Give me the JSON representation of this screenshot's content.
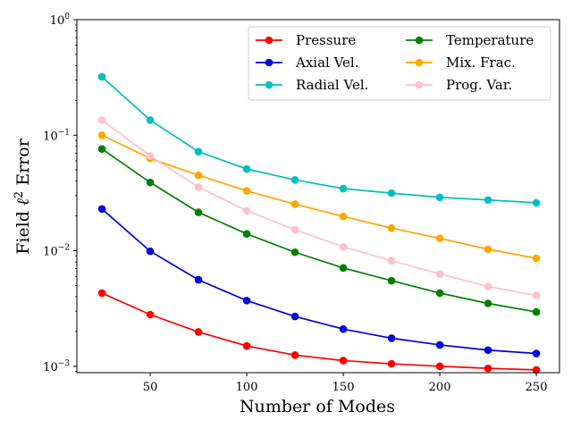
{
  "chart_data": {
    "type": "line",
    "title": "",
    "xlabel": "Number of Modes",
    "ylabel_prefix": "Field ",
    "ylabel_ell": "ℓ",
    "ylabel_sup": "2",
    "ylabel_suffix": " Error",
    "yscale": "log",
    "xlim": [
      12,
      262
    ],
    "ylim": [
      0.00088,
      1.0
    ],
    "x": [
      25,
      50,
      75,
      100,
      125,
      150,
      175,
      200,
      225,
      250
    ],
    "xticks": [
      50,
      100,
      150,
      200,
      250
    ],
    "xtick_labels": [
      "50",
      "100",
      "150",
      "200",
      "250"
    ],
    "yticks": [
      {
        "value": 0.001,
        "base": "10",
        "exp": "−3"
      },
      {
        "value": 0.01,
        "base": "10",
        "exp": "−2"
      },
      {
        "value": 0.1,
        "base": "10",
        "exp": "−1"
      },
      {
        "value": 1.0,
        "base": "10",
        "exp": "0"
      }
    ],
    "grid": false,
    "legend": "top-right",
    "series": [
      {
        "name": "Pressure",
        "color": "#ff0000",
        "values": [
          0.0043,
          0.0028,
          0.00198,
          0.0015,
          0.00125,
          0.00112,
          0.00105,
          0.001,
          0.00096,
          0.00093
        ]
      },
      {
        "name": "Axial Vel.",
        "color": "#0000dd",
        "values": [
          0.023,
          0.0099,
          0.0056,
          0.0037,
          0.0027,
          0.0021,
          0.00175,
          0.00153,
          0.00138,
          0.00129
        ]
      },
      {
        "name": "Radial Vel.",
        "color": "#00bfbf",
        "values": [
          0.32,
          0.135,
          0.072,
          0.051,
          0.041,
          0.0345,
          0.0315,
          0.029,
          0.0275,
          0.026
        ]
      },
      {
        "name": "Temperature",
        "color": "#008000",
        "values": [
          0.076,
          0.039,
          0.0215,
          0.014,
          0.0097,
          0.0071,
          0.0055,
          0.0043,
          0.0035,
          0.00295
        ]
      },
      {
        "name": "Mix. Frac.",
        "color": "#ffa500",
        "values": [
          0.1,
          0.063,
          0.045,
          0.033,
          0.0253,
          0.0198,
          0.0157,
          0.0128,
          0.0103,
          0.0086
        ]
      },
      {
        "name": "Prog. Var.",
        "color": "#ffc0cb",
        "values": [
          0.135,
          0.066,
          0.0355,
          0.0222,
          0.0152,
          0.0108,
          0.0082,
          0.0063,
          0.0049,
          0.0041
        ]
      }
    ]
  }
}
